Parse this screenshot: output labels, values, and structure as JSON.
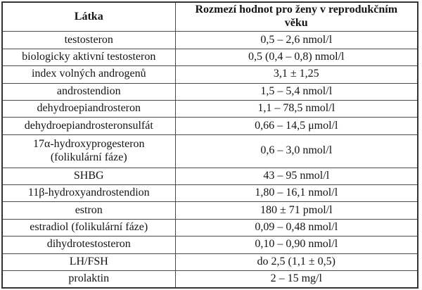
{
  "theme": {
    "border_color": "#4a4a4a",
    "outer_border_color": "#333333",
    "text_color": "#141414",
    "bg_color": "#ffffff"
  },
  "table": {
    "header": {
      "col1": "Látka",
      "col2_line1": "Rozmezí hodnot pro ženy v reprodukčním",
      "col2_line2": "věku"
    },
    "rows": [
      {
        "latka": "testosteron",
        "hodnota": "0,5 – 2,6 nmol/l"
      },
      {
        "latka": "biologicky aktivní testosteron",
        "hodnota": "0,5 (0,4 – 0,8) nmol/l"
      },
      {
        "latka": "index volných androgenů",
        "hodnota": "3,1 ± 1,25"
      },
      {
        "latka": "androstendion",
        "hodnota": "1,5 – 5,4 nmol/l"
      },
      {
        "latka": "dehydroepiandrosteron",
        "hodnota": "1,1 – 78,5 nmol/l"
      },
      {
        "latka": "dehydroepiandrosteronsulfát",
        "hodnota": "0,66 – 14,5 μmol/l"
      },
      {
        "latka_line1": "17α-hydroxyprogesteron",
        "latka_line2": "(folikulární fáze)",
        "hodnota": "0,6 – 3,0 nmol/l"
      },
      {
        "latka": "SHBG",
        "hodnota": "43 – 95 nmol/l"
      },
      {
        "latka": "11β-hydroxyandrostendion",
        "hodnota": "1,80 – 16,1 nmol/l"
      },
      {
        "latka": "estron",
        "hodnota": "180 ± 71 pmol/l"
      },
      {
        "latka": "estradiol (folikulární fáze)",
        "hodnota": "0,09 – 0,48 nmol/l"
      },
      {
        "latka": "dihydrotestosteron",
        "hodnota": "0,10 – 0,90 nmol/l"
      },
      {
        "latka": "LH/FSH",
        "hodnota": "do 2,5 (1,1 ± 0,5)"
      },
      {
        "latka": "prolaktin",
        "hodnota": "2 – 15 mg/l"
      }
    ]
  }
}
